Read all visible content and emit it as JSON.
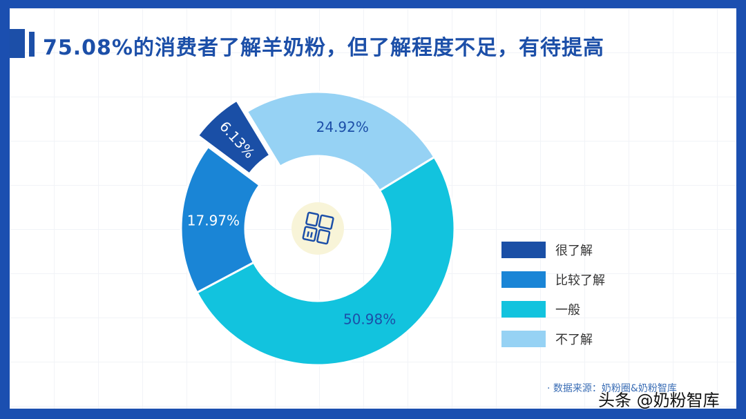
{
  "title": "75.08%的消费者了解羊奶粉，但了解程度不足，有待提高",
  "chart_data": {
    "type": "pie",
    "subtype": "donut",
    "categories": [
      "很了解",
      "比较了解",
      "一般",
      "不了解"
    ],
    "values": [
      6.13,
      17.97,
      50.98,
      24.92
    ],
    "labels": [
      "6.13%",
      "17.97%",
      "50.98%",
      "24.92%"
    ],
    "colors": [
      "#1a4fa6",
      "#1a85d6",
      "#12c3de",
      "#96d2f4"
    ],
    "exploded": [
      "很了解"
    ],
    "legend_position": "right",
    "center_icon": "grid-layout-icon"
  },
  "source": "· 数据来源：奶粉圈&奶粉智库",
  "watermark": "头条 @奶粉智库"
}
